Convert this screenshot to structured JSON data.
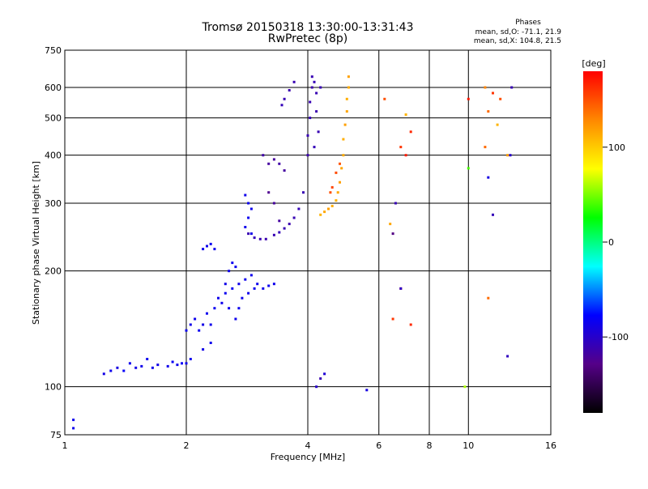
{
  "chart_data": {
    "type": "scatter",
    "title": "Tromsø 20150318 13:30:00-13:31:43",
    "subtitle": "RwPretec (8p)",
    "xlabel": "Frequency [MHz]",
    "ylabel": "Stationary phase Virtual Height [km]",
    "xscale": "log",
    "yscale": "log",
    "xlim": [
      1,
      16
    ],
    "ylim": [
      75,
      750
    ],
    "x_ticks": [
      1,
      2,
      4,
      6,
      8,
      10,
      16
    ],
    "x_tick_labels": [
      "1",
      "2",
      "4",
      "6",
      "8",
      "10",
      "16"
    ],
    "y_ticks": [
      75,
      100,
      200,
      300,
      400,
      500,
      600,
      750
    ],
    "y_tick_labels": [
      "75",
      "100",
      "200",
      "300",
      "400",
      "500",
      "600",
      "750"
    ],
    "grid": true,
    "legend": {
      "heading": "Phases",
      "lines": [
        "mean, sd,O: -71.1, 21.9",
        "mean, sd,X: 104.8, 21.5"
      ],
      "placement": "top-right"
    },
    "colorbar": {
      "label": "[deg]",
      "range": [
        -180,
        180
      ],
      "ticks": [
        100,
        0,
        -100
      ],
      "tick_labels": [
        "100",
        "0",
        "-100"
      ],
      "colors": [
        "#ff0000",
        "#ff8800",
        "#ffff00",
        "#00ff00",
        "#00ffff",
        "#0000ff",
        "#550088",
        "#000000"
      ]
    },
    "series": [
      {
        "points": [
          [
            1.05,
            82,
            -85
          ],
          [
            1.05,
            78,
            -85
          ],
          [
            1.25,
            108,
            -88
          ],
          [
            1.3,
            110,
            -85
          ],
          [
            1.35,
            112,
            -90
          ],
          [
            1.4,
            110,
            -80
          ],
          [
            1.45,
            115,
            -85
          ],
          [
            1.5,
            112,
            -88
          ],
          [
            1.55,
            113,
            -86
          ],
          [
            1.6,
            118,
            -84
          ],
          [
            1.65,
            112,
            -85
          ],
          [
            1.7,
            114,
            -88
          ],
          [
            1.8,
            113,
            -86
          ],
          [
            1.85,
            116,
            -82
          ],
          [
            1.9,
            114,
            -85
          ],
          [
            1.95,
            115,
            -80
          ],
          [
            2.0,
            115,
            -85
          ],
          [
            2.05,
            118,
            -84
          ],
          [
            2.0,
            140,
            -84
          ],
          [
            2.05,
            145,
            -86
          ],
          [
            2.1,
            150,
            -85
          ],
          [
            2.15,
            140,
            -83
          ],
          [
            2.2,
            145,
            -88
          ],
          [
            2.25,
            155,
            -84
          ],
          [
            2.3,
            145,
            -85
          ],
          [
            2.2,
            125,
            -87
          ],
          [
            2.3,
            130,
            -85
          ],
          [
            2.35,
            160,
            -83
          ],
          [
            2.4,
            170,
            -86
          ],
          [
            2.45,
            165,
            -85
          ],
          [
            2.5,
            175,
            -84
          ],
          [
            2.55,
            160,
            -86
          ],
          [
            2.6,
            180,
            -82
          ],
          [
            2.65,
            150,
            -85
          ],
          [
            2.7,
            185,
            -86
          ],
          [
            2.75,
            170,
            -84
          ],
          [
            2.8,
            190,
            -85
          ],
          [
            2.55,
            200,
            -86
          ],
          [
            2.6,
            210,
            -83
          ],
          [
            2.65,
            205,
            -85
          ],
          [
            2.5,
            185,
            -87
          ],
          [
            2.7,
            160,
            -84
          ],
          [
            2.85,
            175,
            -86
          ],
          [
            2.9,
            195,
            -85
          ],
          [
            2.95,
            180,
            -84
          ],
          [
            3.0,
            185,
            -85
          ],
          [
            3.1,
            180,
            -86
          ],
          [
            3.2,
            183,
            -84
          ],
          [
            3.3,
            185,
            -85
          ],
          [
            2.2,
            228,
            -85
          ],
          [
            2.25,
            232,
            -86
          ],
          [
            2.3,
            235,
            -83
          ],
          [
            2.35,
            228,
            -85
          ],
          [
            2.8,
            260,
            -86
          ],
          [
            2.85,
            275,
            -84
          ],
          [
            2.9,
            290,
            -85
          ],
          [
            2.8,
            315,
            -86
          ],
          [
            2.85,
            300,
            -84
          ],
          [
            2.9,
            250,
            -87
          ]
        ]
      },
      {
        "points": [
          [
            2.85,
            250,
            -110
          ],
          [
            2.95,
            244,
            -108
          ],
          [
            3.05,
            242,
            -110
          ],
          [
            3.15,
            242,
            -112
          ],
          [
            3.3,
            248,
            -110
          ],
          [
            3.4,
            252,
            -108
          ],
          [
            3.5,
            258,
            -110
          ],
          [
            3.6,
            265,
            -112
          ],
          [
            3.7,
            275,
            -110
          ],
          [
            3.8,
            290,
            -108
          ],
          [
            3.9,
            320,
            -110
          ],
          [
            4.0,
            400,
            -112
          ],
          [
            4.0,
            450,
            -110
          ],
          [
            4.05,
            500,
            -108
          ],
          [
            4.05,
            550,
            -110
          ],
          [
            4.1,
            600,
            -112
          ],
          [
            4.1,
            640,
            -110
          ],
          [
            4.15,
            620,
            -108
          ],
          [
            4.2,
            580,
            -110
          ],
          [
            4.2,
            520,
            -112
          ],
          [
            4.25,
            460,
            -110
          ],
          [
            4.15,
            420,
            -108
          ],
          [
            4.3,
            600,
            -110
          ],
          [
            3.2,
            320,
            -125
          ],
          [
            3.3,
            300,
            -120
          ],
          [
            3.4,
            270,
            -118
          ],
          [
            3.1,
            400,
            -115
          ],
          [
            3.2,
            380,
            -118
          ],
          [
            3.3,
            390,
            -120
          ],
          [
            3.4,
            380,
            -115
          ],
          [
            3.5,
            365,
            -118
          ],
          [
            3.5,
            560,
            -110
          ],
          [
            3.6,
            590,
            -112
          ],
          [
            3.7,
            620,
            -110
          ],
          [
            3.45,
            540,
            -108
          ]
        ]
      },
      {
        "points": [
          [
            4.3,
            280,
            110
          ],
          [
            4.4,
            285,
            115
          ],
          [
            4.5,
            290,
            118
          ],
          [
            4.6,
            295,
            112
          ],
          [
            4.7,
            305,
            110
          ],
          [
            4.75,
            320,
            115
          ],
          [
            4.8,
            340,
            118
          ],
          [
            4.85,
            370,
            116
          ],
          [
            4.9,
            400,
            114
          ],
          [
            4.9,
            440,
            112
          ],
          [
            4.95,
            480,
            118
          ],
          [
            5.0,
            520,
            116
          ],
          [
            5.0,
            560,
            112
          ],
          [
            5.05,
            600,
            114
          ],
          [
            5.05,
            640,
            118
          ],
          [
            4.55,
            320,
            150
          ],
          [
            4.6,
            330,
            155
          ],
          [
            4.7,
            360,
            152
          ],
          [
            4.8,
            380,
            148
          ],
          [
            6.2,
            560,
            150
          ],
          [
            6.8,
            420,
            160
          ],
          [
            7.0,
            400,
            170
          ],
          [
            7.2,
            460,
            165
          ],
          [
            7.0,
            510,
            110
          ],
          [
            11.0,
            600,
            130
          ],
          [
            11.2,
            520,
            140
          ],
          [
            11.5,
            580,
            160
          ],
          [
            12.0,
            560,
            150
          ],
          [
            11.8,
            480,
            110
          ],
          [
            12.5,
            400,
            120
          ],
          [
            11.0,
            420,
            140
          ],
          [
            10.0,
            560,
            170
          ],
          [
            6.4,
            265,
            115
          ],
          [
            6.8,
            180,
            170
          ],
          [
            6.5,
            150,
            160
          ],
          [
            7.2,
            145,
            165
          ],
          [
            11.2,
            170,
            140
          ]
        ]
      },
      {
        "points": [
          [
            4.2,
            100,
            -100
          ],
          [
            4.3,
            105,
            -110
          ],
          [
            4.4,
            108,
            -95
          ],
          [
            5.6,
            98,
            -90
          ],
          [
            6.6,
            300,
            -110
          ],
          [
            6.8,
            180,
            -100
          ],
          [
            12.5,
            120,
            -105
          ],
          [
            12.8,
            600,
            -110
          ],
          [
            12.7,
            400,
            -100
          ],
          [
            11.5,
            280,
            -108
          ],
          [
            11.2,
            350,
            -90
          ],
          [
            9.8,
            100,
            60
          ],
          [
            10.0,
            370,
            40
          ],
          [
            6.5,
            250,
            -130
          ]
        ]
      }
    ]
  }
}
